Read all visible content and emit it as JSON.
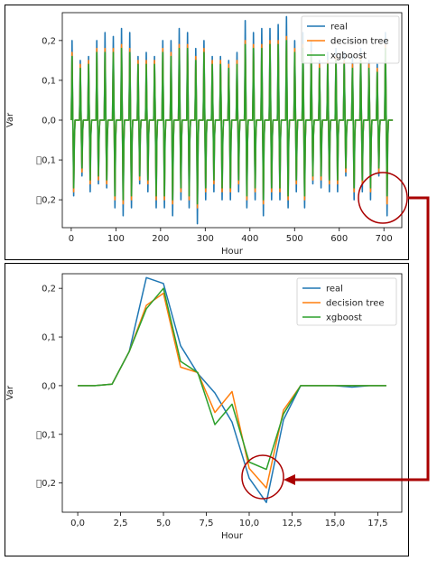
{
  "chart_data": [
    {
      "type": "line",
      "xlabel": "Hour",
      "ylabel": "Var",
      "xlim": [
        -20,
        740
      ],
      "ylim": [
        -0.27,
        0.27
      ],
      "x_ticks": [
        0,
        100,
        200,
        300,
        400,
        500,
        600,
        700
      ],
      "x_tick_labels": [
        "0",
        "100",
        "200",
        "300",
        "400",
        "500",
        "600",
        "700"
      ],
      "y_ticks": [
        -0.2,
        -0.1,
        0.0,
        0.1,
        0.2
      ],
      "y_tick_labels": [
        "\u00000,2",
        "\u00000,1",
        "0,0",
        "0,1",
        "0,2"
      ],
      "legend_position": "top-right",
      "grid": false,
      "colors": {
        "real": "#1f77b4",
        "decision tree": "#ff7f0e",
        "xgboost": "#2ca02c"
      },
      "series": [
        {
          "name": "real",
          "color": "#1f77b4",
          "peaks": [
            0.2,
            0.15,
            0.16,
            0.2,
            0.22,
            0.21,
            0.23,
            0.22,
            0.16,
            0.17,
            0.16,
            0.2,
            0.2,
            0.23,
            0.22,
            0.18,
            0.2,
            0.16,
            0.16,
            0.15,
            0.17,
            0.25,
            0.22,
            0.23,
            0.23,
            0.24,
            0.26,
            0.2,
            0.22,
            0.2,
            0.15,
            0.17,
            0.18,
            0.17,
            0.16,
            0.18,
            0.15,
            0.14,
            0.22
          ],
          "troughs": [
            -0.19,
            -0.14,
            -0.18,
            -0.16,
            -0.17,
            -0.22,
            -0.24,
            -0.22,
            -0.16,
            -0.18,
            -0.22,
            -0.22,
            -0.24,
            -0.2,
            -0.22,
            -0.26,
            -0.2,
            -0.18,
            -0.2,
            -0.2,
            -0.18,
            -0.22,
            -0.2,
            -0.24,
            -0.2,
            -0.2,
            -0.22,
            -0.18,
            -0.22,
            -0.16,
            -0.17,
            -0.18,
            -0.18,
            -0.14,
            -0.2,
            -0.18,
            -0.2,
            -0.14,
            -0.24
          ]
        },
        {
          "name": "decision tree",
          "color": "#ff7f0e",
          "peaks": [
            0.17,
            0.14,
            0.15,
            0.18,
            0.18,
            0.18,
            0.19,
            0.18,
            0.15,
            0.15,
            0.15,
            0.18,
            0.17,
            0.19,
            0.19,
            0.16,
            0.18,
            0.15,
            0.15,
            0.14,
            0.15,
            0.2,
            0.19,
            0.19,
            0.2,
            0.2,
            0.21,
            0.18,
            0.19,
            0.17,
            0.14,
            0.15,
            0.16,
            0.15,
            0.14,
            0.16,
            0.14,
            0.13,
            0.19
          ],
          "troughs": [
            -0.18,
            -0.13,
            -0.16,
            -0.15,
            -0.16,
            -0.2,
            -0.21,
            -0.2,
            -0.15,
            -0.16,
            -0.2,
            -0.2,
            -0.21,
            -0.18,
            -0.2,
            -0.22,
            -0.18,
            -0.16,
            -0.18,
            -0.18,
            -0.16,
            -0.2,
            -0.18,
            -0.21,
            -0.18,
            -0.18,
            -0.2,
            -0.16,
            -0.2,
            -0.15,
            -0.15,
            -0.16,
            -0.16,
            -0.13,
            -0.18,
            -0.16,
            -0.18,
            -0.13,
            -0.21
          ]
        },
        {
          "name": "xgboost",
          "color": "#2ca02c",
          "peaks": [
            0.16,
            0.13,
            0.14,
            0.17,
            0.17,
            0.17,
            0.18,
            0.17,
            0.14,
            0.14,
            0.14,
            0.17,
            0.16,
            0.18,
            0.18,
            0.15,
            0.17,
            0.14,
            0.14,
            0.13,
            0.14,
            0.19,
            0.18,
            0.18,
            0.19,
            0.19,
            0.2,
            0.17,
            0.18,
            0.16,
            0.13,
            0.14,
            0.15,
            0.14,
            0.13,
            0.15,
            0.13,
            0.12,
            0.18
          ],
          "troughs": [
            -0.17,
            -0.12,
            -0.15,
            -0.14,
            -0.15,
            -0.19,
            -0.2,
            -0.19,
            -0.14,
            -0.15,
            -0.19,
            -0.19,
            -0.2,
            -0.17,
            -0.19,
            -0.21,
            -0.17,
            -0.15,
            -0.17,
            -0.17,
            -0.15,
            -0.19,
            -0.17,
            -0.2,
            -0.17,
            -0.17,
            -0.19,
            -0.15,
            -0.19,
            -0.14,
            -0.14,
            -0.15,
            -0.15,
            -0.12,
            -0.17,
            -0.15,
            -0.17,
            -0.12,
            -0.19
          ]
        }
      ]
    },
    {
      "type": "line",
      "xlabel": "Hour",
      "ylabel": "Var",
      "xlim": [
        -0.9,
        18.9
      ],
      "ylim": [
        -0.26,
        0.23
      ],
      "x_ticks": [
        0.0,
        2.5,
        5.0,
        7.5,
        10.0,
        12.5,
        15.0,
        17.5
      ],
      "x_tick_labels": [
        "0,0",
        "2,5",
        "5,0",
        "7,5",
        "10,0",
        "12,5",
        "15,0",
        "17,5"
      ],
      "y_ticks": [
        -0.2,
        -0.1,
        0.0,
        0.1,
        0.2
      ],
      "y_tick_labels": [
        "\u00000,2",
        "\u00000,1",
        "0,0",
        "0,1",
        "0,2"
      ],
      "legend_position": "top-right",
      "grid": false,
      "x": [
        0,
        1,
        2,
        3,
        4,
        5,
        6,
        7,
        8,
        9,
        10,
        11,
        12,
        13,
        14,
        15,
        16,
        17,
        18
      ],
      "series": [
        {
          "name": "real",
          "color": "#1f77b4",
          "values": [
            0.0,
            0.0,
            0.003,
            0.07,
            0.222,
            0.21,
            0.082,
            0.025,
            -0.015,
            -0.075,
            -0.19,
            -0.24,
            -0.07,
            0.0,
            0.0,
            0.0,
            -0.003,
            0.0,
            0.0
          ]
        },
        {
          "name": "decision tree",
          "color": "#ff7f0e",
          "values": [
            0.0,
            0.0,
            0.003,
            0.07,
            0.165,
            0.19,
            0.038,
            0.027,
            -0.055,
            -0.012,
            -0.17,
            -0.21,
            -0.05,
            0.0,
            0.0,
            0.0,
            0.0,
            0.0,
            0.0
          ]
        },
        {
          "name": "xgboost",
          "color": "#2ca02c",
          "values": [
            0.0,
            0.0,
            0.003,
            0.07,
            0.158,
            0.2,
            0.05,
            0.027,
            -0.08,
            -0.038,
            -0.157,
            -0.172,
            -0.058,
            0.0,
            0.0,
            0.0,
            0.0,
            0.0,
            0.0
          ]
        }
      ]
    }
  ],
  "annotation": {
    "color": "#aa0000"
  }
}
